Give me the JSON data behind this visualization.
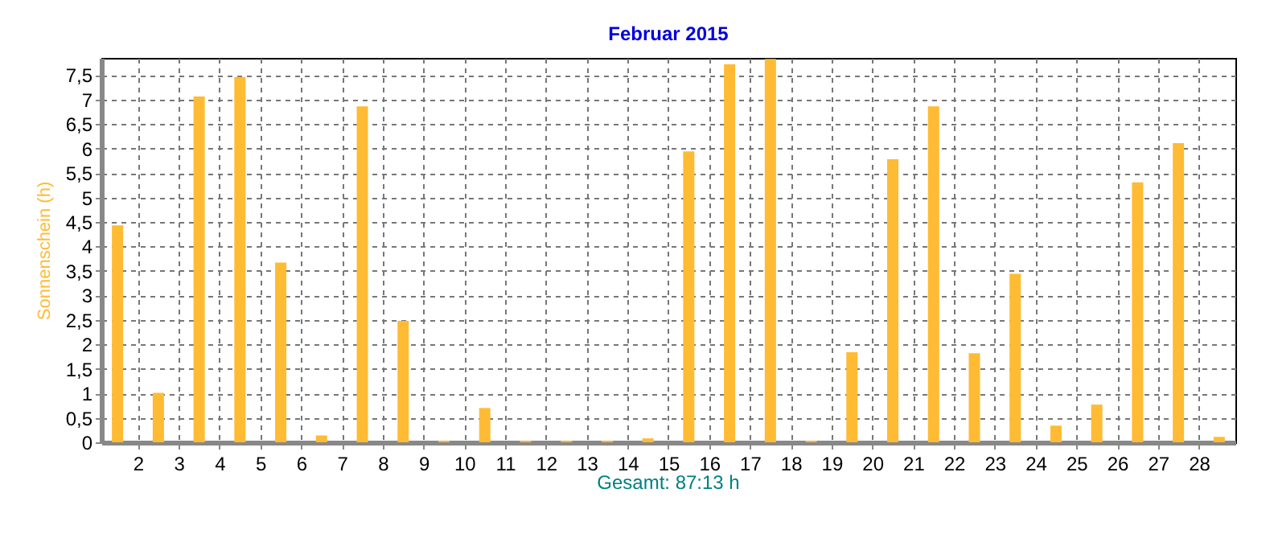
{
  "chart_data": {
    "type": "bar",
    "title": "Februar 2015",
    "ylabel": "Sonnenschein  (h)",
    "annotations": [
      "Gesamt: 87:13 h"
    ],
    "x": [
      1.5,
      2.5,
      3.5,
      4.5,
      5.5,
      6.5,
      7.5,
      8.5,
      9.5,
      10.5,
      11.5,
      12.5,
      13.5,
      14.5,
      15.5,
      16.5,
      17.5,
      18.5,
      19.5,
      20.5,
      21.5,
      22.5,
      23.5,
      24.5,
      25.5,
      26.5,
      27.5,
      28.5
    ],
    "values": [
      4.43,
      1.01,
      7.06,
      7.46,
      3.67,
      0.14,
      6.86,
      2.48,
      0.03,
      0.7,
      0.03,
      0.03,
      0.03,
      0.08,
      5.94,
      7.72,
      7.83,
      0.03,
      1.84,
      5.78,
      6.86,
      1.82,
      3.44,
      0.34,
      0.77,
      5.31,
      6.11,
      0.11
    ],
    "color": "#ffbb33",
    "xlim": [
      1.3,
      28.7
    ],
    "xticks": [
      2,
      3,
      4,
      5,
      6,
      7,
      8,
      9,
      10,
      11,
      12,
      13,
      14,
      15,
      16,
      17,
      18,
      19,
      20,
      21,
      22,
      23,
      24,
      25,
      26,
      27,
      28
    ],
    "ylim": [
      0,
      7.85
    ],
    "yticks": [
      0,
      {
        "value": 0.5,
        "label": "0,5"
      },
      1,
      {
        "value": 1.5,
        "label": "1,5"
      },
      2,
      {
        "value": 2.5,
        "label": "2,5"
      },
      3,
      {
        "value": 3.5,
        "label": "3,5"
      },
      4,
      {
        "value": 4.5,
        "label": "4,5"
      },
      5,
      {
        "value": 5.5,
        "label": "5,5"
      },
      6,
      {
        "value": 6.5,
        "label": "6,5"
      },
      7,
      {
        "value": 7.5,
        "label": "7,5"
      }
    ],
    "grid": true
  }
}
